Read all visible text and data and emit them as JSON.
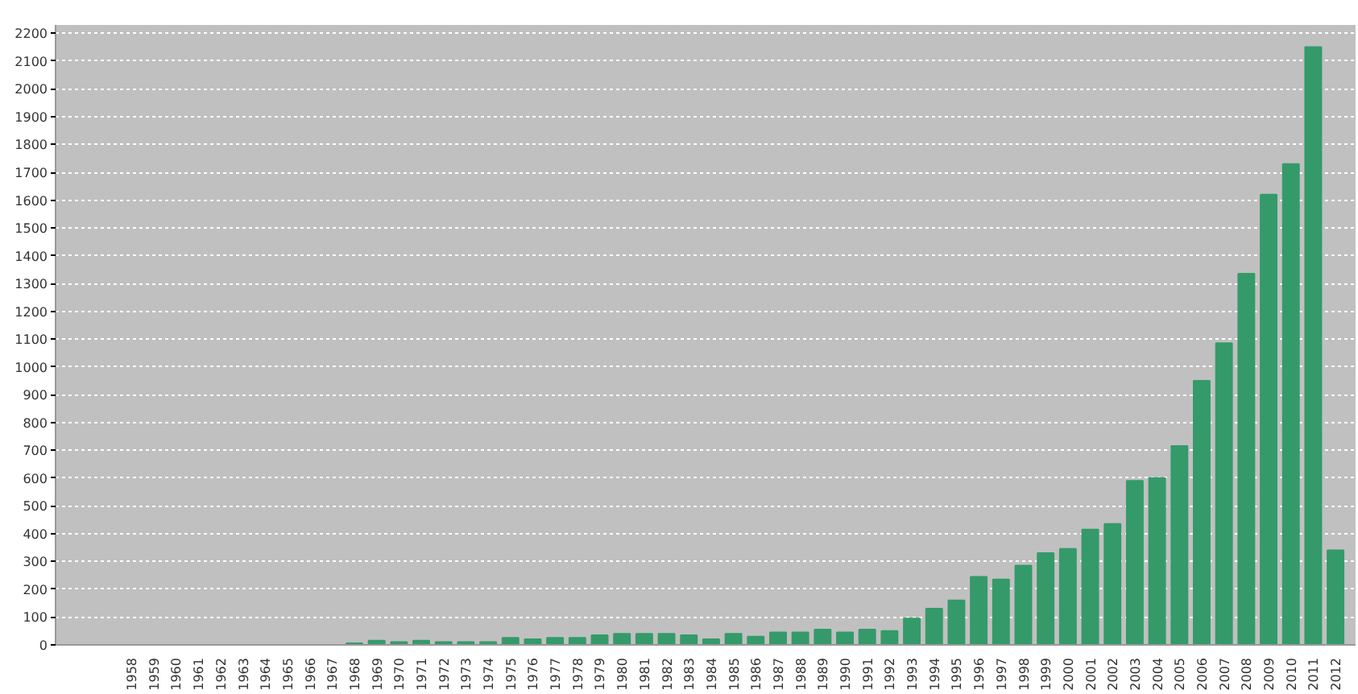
{
  "chart_data": {
    "type": "bar",
    "categories": [
      "1958",
      "1959",
      "1960",
      "1961",
      "1962",
      "1963",
      "1964",
      "1965",
      "1966",
      "1967",
      "1968",
      "1969",
      "1970",
      "1971",
      "1972",
      "1973",
      "1974",
      "1975",
      "1976",
      "1977",
      "1978",
      "1979",
      "1980",
      "1981",
      "1982",
      "1983",
      "1984",
      "1985",
      "1986",
      "1987",
      "1988",
      "1989",
      "1990",
      "1991",
      "1992",
      "1993",
      "1994",
      "1995",
      "1996",
      "1997",
      "1998",
      "1999",
      "2000",
      "2001",
      "2002",
      "2003",
      "2004",
      "2005",
      "2006",
      "2007",
      "2008",
      "2009",
      "2010",
      "2011",
      "2012"
    ],
    "values": [
      0,
      0,
      0,
      0,
      0,
      0,
      0,
      0,
      0,
      0,
      6,
      15,
      10,
      15,
      10,
      10,
      10,
      25,
      20,
      25,
      25,
      35,
      40,
      40,
      40,
      35,
      20,
      40,
      30,
      45,
      45,
      55,
      45,
      55,
      50,
      95,
      130,
      160,
      245,
      235,
      285,
      330,
      345,
      415,
      435,
      590,
      600,
      715,
      950,
      1085,
      1335,
      1620,
      1730,
      2150,
      340
    ],
    "color": "#359a6a",
    "ylim": [
      0,
      2230
    ],
    "yticks": [
      0,
      100,
      200,
      300,
      400,
      500,
      600,
      700,
      800,
      900,
      1000,
      1100,
      1200,
      1300,
      1400,
      1500,
      1600,
      1700,
      1800,
      1900,
      2000,
      2100,
      2200
    ],
    "grid": "y"
  }
}
